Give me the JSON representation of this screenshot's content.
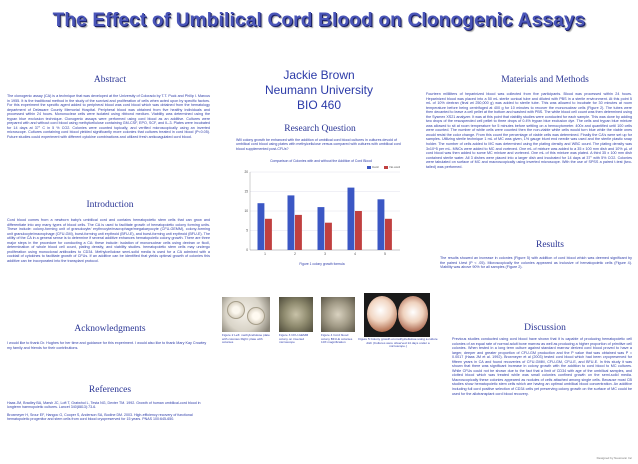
{
  "title": "The Effect of Umbilical Cord Blood on Clonogenic Assays",
  "author": {
    "name": "Jackie Brown",
    "school": "Neumann University",
    "course": "BIO 460"
  },
  "abstract": {
    "heading": "Abstract",
    "text": "The clonogenic assay (CA) is a technique that was developed at the University of Colorado by T.T. Puck and Philip I. Marcus in 1955. It is the traditional method in the study of the survival and proliferation of cells when acted upon by specific factors. For this experiment the specific agent added to peripheral blood was cord blood which was obtained from the hematology department of Delaware County Memorial Hospital. Peripheral blood was obtained from five healthy individuals and processed within 24 hours. Mononuclear cells were isolated using ribbond medium. Viability was determined using the trypan blue exclusion technique. Clonogenic assays were performed using cord blood as an additive. Cultures were prepared with and without cord blood using methylcellulose containing GM-CSF, EPO, SCF, and IL-3. Plates were incubated for 14 days at 37° C in 5 % CO2. Colonies were counted topically, and verified microscopically using an inverted microscope. Cultures containing cord blood yielded significantly more colonies that cultures treated in cord blood (P<0.05). Future studies could experiment with different cytokine combinations and utilized fresh anticoagulated cord blood."
  },
  "introduction": {
    "heading": "Introduction",
    "text": "Cord blood comes from a newborn baby's umbilical cord and contains hematopoietic stem cells that can grow and differentiate into any many types of blood cells. The CA is used to facilitate growth of hematopoietic colony forming units. These include: colony-forming unit of granulocyte/ erythrocyte/macrophage/megakaryocyte (CFU-GEMM), colony-forming unit granulocyte/macrophage (CFU-GM), burst-forming unit erythroid (BFU-E), and burst-forming unit erythroid (BFU-E). The utility of the CA in a general sense is to determine if several additive enhances hematopoietic colony growth. There are three major steps in the procedure for conducting a CA: these include: isolation of mononuclear cells using dextran or ficoll, determination of whole blood cell count, plating density, and viability studies. hematopoietic stem cells may undergo proliferation using monoclonal antibodies to CD34. Methylcellulose semi-solid media is used for a CA admixed with a cocktail of cytokines to facilitate growth of CFUs. If an additive can be identified that yields optimal growth of colonies this additive can be incorporated into the transplant protocol."
  },
  "acknowledgments": {
    "heading": "Acknowledgments",
    "text": "I would like to thank Dr. Hughes for her time and guidance for this experiment. I would also like to thank Mary Kay Crowley my family and friends for their contributions."
  },
  "references": {
    "heading": "References",
    "items": [
      "Haas JM, Bradley BA, Marsh JC, Loft T, Gratwhol L, Testa NG, Dexter TM. 1992. Growth of human umbilical-cord blood in longterm haemopoietic cultures. Lancet 340(8813):73-6.",
      "Broxmeyer H, Srour EF, Hangoc G, Cooper S, Anderson SA, Bodine DM. 2003. High-efficiency recovery of functional hematopoietic progenitor and stem cells from cord blood cryopreserved for 15 years. PNAS 100:645-650."
    ]
  },
  "research_question": {
    "heading": "Research Question",
    "text": "Will colony growth be enhanced with the addition of umbilical cord blood cultures in cultures devoid of umbilical cord blood using plates with methylcellulose versus compared with cultures with umbilical cord blood supplemented post-CFUs?"
  },
  "chart_data": {
    "type": "bar",
    "title": "Comparison of Colonies with and without the Addition of Cord Blood",
    "categories": [
      "1",
      "2",
      "3",
      "4",
      "5"
    ],
    "series": [
      {
        "name": "Cord",
        "values": [
          12,
          14,
          11,
          16,
          13
        ]
      },
      {
        "name": "No cord",
        "values": [
          8,
          9,
          7,
          10,
          8
        ]
      }
    ],
    "ylim": [
      0,
      20
    ],
    "yticks": [
      "0",
      "5",
      "10",
      "15",
      "20"
    ],
    "grid": true,
    "legend_position": "top-right",
    "colors": [
      "#3b57c4",
      "#c04040"
    ]
  },
  "figure1_caption": "Figure 1 colony growth formula",
  "photos": {
    "captions": [
      "Figure 2 Left: methylcellulose plate with colonies Right: plate with colonies",
      "Figure 3 CFU-GEMM colony on inverted microscope",
      "Figure 4 Cord blood colony BFU-E colonies 10X magnification"
    ],
    "caption5": "Figure 5 Colony growth on methylcellulose using a culture dish (Cultures were observed 14 days under a microscope.)"
  },
  "materials": {
    "heading": "Materials and Methods",
    "text": "Fourteen milliliters of heparinized blood was collected from five participants. Blood was processed within 24 hours. Heparinized blood was placed into a 50 mL sterile conical tube and diluted with PBS in a sterile environment. At this point 5 mL of 10% dextran (final wt 250,000 g) was added to sterile tube. This was allowed to incubate for 30 minutes at room temperature before being centrifuged at 400 g for 10 minutes to recover the mononuclear cells (Figure 2). The tubes were then decanted to leave a cell pellet at the bottom and washed with PBS. The white blood cell count was then determined using the Sysmex XS21 analyzer. It was at this point that viability studies were conducted for each sample. This was done by adding two drops of the resuspended cell pellet to three drops of 0.4% trypan blue exclusion dye. The cells and trypan blue mixture was allowed to sit at room temperature for 5 minutes before settling on a hemocytometer. 400x and quantified until 100 cells were counted. The number of white cells were counted then the non-viable white cells would turn blue while the viable ones would resist the color change. From this count the percentage of viable cells was determined. Finally the CA's were set up for samples. Utilizing sterile technique 1 mL of MC was given, 1% gauge blunt end needle was used and the sterile plastic snap holder. The number of cells added to MC was determined using the plating density and WBC count. The plating density was 3x10^5 per mL. MNCs were added to MC and vortexed. One mL of mixture was added to a 35 x 100 mm dish and 10% µL of cord blood was then added to some MC mixture and vortexed. One mL of this mixture was plated. A third 35 x 100 mm dish contained sterile water. All 3 dishes were placed into a larger dish and incubated for 14 days at 37° with 5% CO2. Colonies were tabulated on surface of MC and macroscopically using inverted microscope. With the use of SPSS a paired t-test (two-tailed) was performed."
  },
  "results": {
    "heading": "Results",
    "text": "The results showed an increase in colonies (Figure 5) with addition of cord blood which was deemed significant by the paired t-test (P < .05). Microscopically the colonies appeared as inclusive of hematopoietic cells (Figure 4). Viability was above 90% for all samples (Figure 2)."
  },
  "discussion": {
    "heading": "Discussion",
    "text": "Previous studies conducted using cord blood have shown that it is capable of producing hematopoietic cell colonies of an equal rate of normal adult bone marrow as well as producing a higher proportion of primitive cell colonies. When tested in a long term culture against standard marrow derived cord blood proved to have a larger, deeper and greater proportion of CFU-GM production and the P value that was obtained was P = 0.0017 (Haas JM et al. 1992). Broxmeyer et al (2003) tested cord blood which had been cryopreserved for fifteen years in CA and found recoveries of CFU-GMM, CFU-GM, CFU-E, and BFU-E. In this study it was shown that there was significant increase in colony growth with the addition to cord blood to MC cultures. While CFUs could not be shown due to the fact that a limit of CD34 with age of the umbilical samples, and clotted blood which was treated while was small colonies confined growth on the semi-solid media. Macroscopically these colonies appeared as nodules of cells attached among single cells. Because most CB studies show hematopoietic stem cells which are having an optimal umbilical blood concentration. An additive including full cord positive selection of CD34 cells yet preserving colony growth on the surface of MC could be used for the allotransplant cord blood recovery."
  },
  "footer": "Designed by Neumann Inc"
}
